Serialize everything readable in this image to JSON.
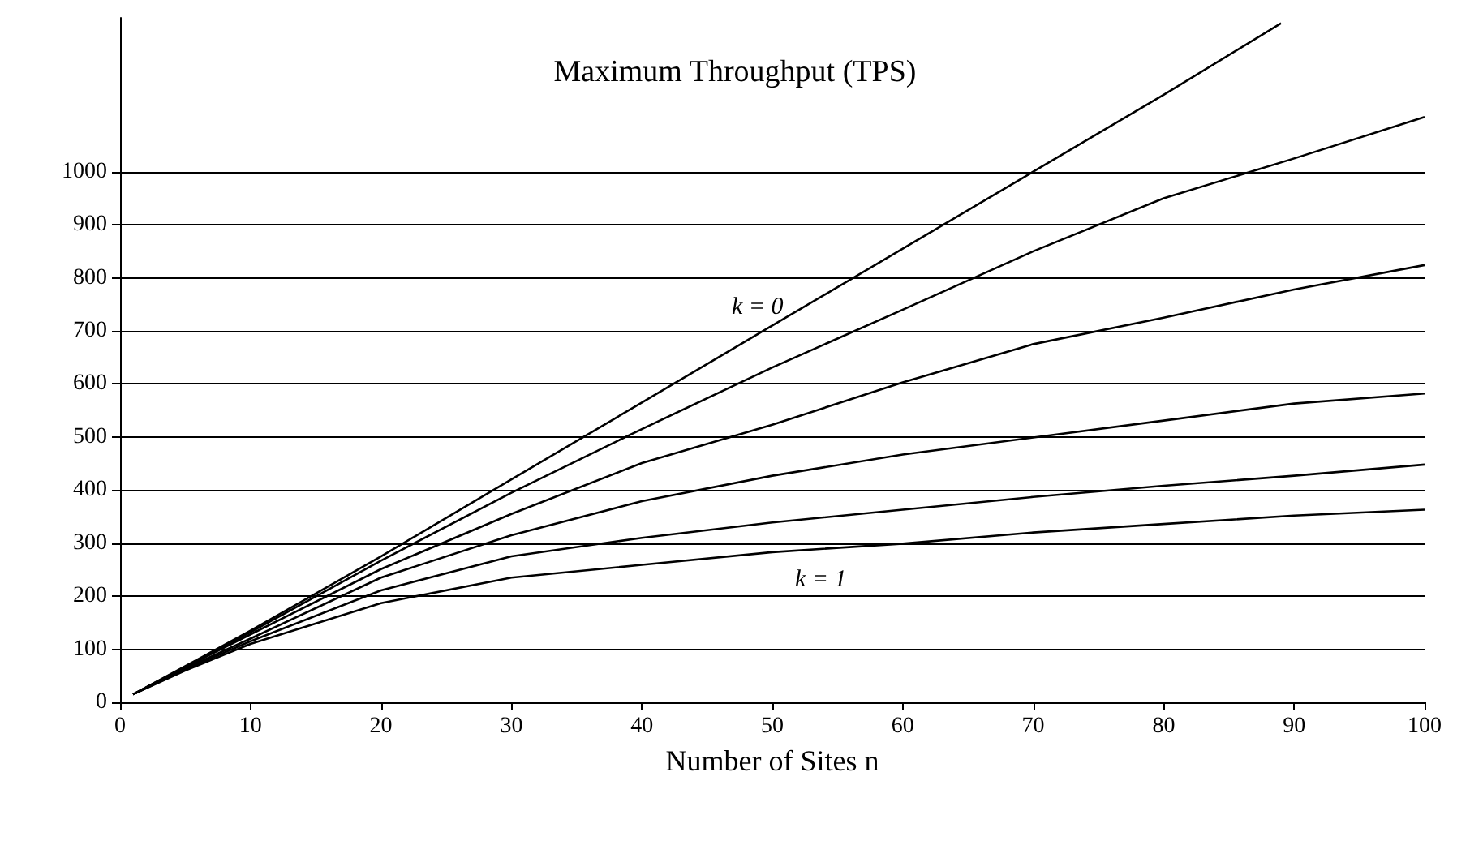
{
  "chart_data": {
    "type": "line",
    "title": "Maximum Throughput (TPS)",
    "xlabel": "Number of Sites n",
    "x": [
      1,
      5,
      10,
      20,
      30,
      40,
      50,
      60,
      70,
      80,
      89,
      90,
      100
    ],
    "series": [
      {
        "color": "#000000",
        "values": [
          15,
          68,
          135,
          275,
          420,
          565,
          710,
          855,
          1000,
          1145,
          1280,
          null,
          null
        ]
      },
      {
        "color": "#000000",
        "values": [
          15,
          67,
          132,
          267,
          395,
          515,
          631,
          740,
          850,
          950,
          null,
          1025,
          1103
        ]
      },
      {
        "color": "#000000",
        "values": [
          15,
          66,
          128,
          251,
          355,
          451,
          523,
          603,
          675,
          725,
          null,
          778,
          824
        ]
      },
      {
        "color": "#000000",
        "values": [
          15,
          64,
          120,
          235,
          315,
          379,
          427,
          467,
          499,
          531,
          null,
          563,
          582
        ]
      },
      {
        "color": "#000000",
        "values": [
          15,
          62,
          115,
          211,
          275,
          310,
          339,
          363,
          387,
          408,
          null,
          427,
          448
        ]
      },
      {
        "color": "#000000",
        "values": [
          15,
          60,
          110,
          187,
          235,
          259,
          283,
          299,
          320,
          336,
          null,
          352,
          363
        ]
      }
    ],
    "annotations": [
      "k = 0",
      "k = 1"
    ],
    "xlim": [
      0,
      100
    ],
    "xticks": [
      0,
      10,
      20,
      30,
      40,
      50,
      60,
      70,
      80,
      90,
      100
    ],
    "ylim": [
      0,
      1290
    ],
    "yticks": [
      0,
      100,
      200,
      300,
      400,
      500,
      600,
      700,
      800,
      900,
      1000
    ],
    "grid": "y",
    "marker": "none",
    "line_style": "solid"
  }
}
